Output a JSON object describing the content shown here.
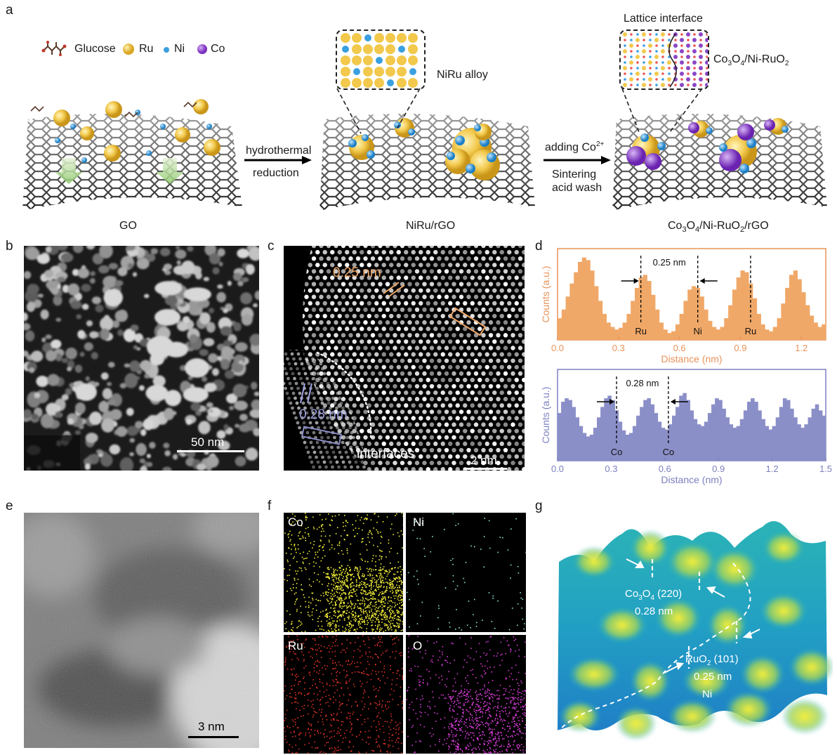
{
  "panels": {
    "a": "a",
    "b": "b",
    "c": "c",
    "d": "d",
    "e": "e",
    "f": "f",
    "g": "g"
  },
  "panel_a": {
    "legend": {
      "glucose": "Glucose",
      "ru": "Ru",
      "ni": "Ni",
      "co": "Co"
    },
    "steps": {
      "go": "GO",
      "nirurgo": "NiRu/rGO",
      "final_pre": "Co",
      "final_sub1": "3",
      "final_mid": "O",
      "final_sub2": "4",
      "final_mid2": "/Ni-RuO",
      "final_sub3": "2",
      "final_post": "/rGO"
    },
    "arrow1": {
      "top": "hydrothermal",
      "bottom": "reduction"
    },
    "arrow2": {
      "top_pre": "adding Co",
      "top_sup": "2+",
      "bottom1": "Sintering",
      "bottom2": "acid wash"
    },
    "inset1_label": "NiRu alloy",
    "inset2_title": "Lattice interface",
    "inset2_label_pre": "Co",
    "inset2_sub1": "3",
    "inset2_mid": "O",
    "inset2_sub2": "4",
    "inset2_post": "/Ni-RuO",
    "inset2_sub3": "2"
  },
  "panel_b": {
    "scale": "50 nm"
  },
  "panel_c": {
    "spacing1": "0.25 nm",
    "spacing2": "0.28 nm",
    "interfaces": "interfaces",
    "scale": "2 nm"
  },
  "panel_e": {
    "scale": "3 nm"
  },
  "panel_f": {
    "maps": [
      "Co",
      "Ni",
      "Ru",
      "O"
    ]
  },
  "panel_g": {
    "label1_pre": "Co",
    "label1_sub1": "3",
    "label1_mid": "O",
    "label1_sub2": "4",
    "label1_post": " (220)",
    "label1_val": "0.28 nm",
    "label2_pre": "RuO",
    "label2_sub": "2",
    "label2_post": " (101)",
    "label2_val": "0.25 nm",
    "label2_el": "Ni"
  },
  "colors": {
    "orange": "#f0a868",
    "orange_dark": "#e8935a",
    "purple": "#8b8fc8",
    "purple_dark": "#7c80c0",
    "ru_gold": "#f2c94c",
    "ni_blue": "#3aa0e0",
    "co_purple": "#8a46c8"
  },
  "chart_data": [
    {
      "type": "bar",
      "panel": "d-top",
      "xlabel": "Distance (nm)",
      "ylabel": "Counts (a.u.)",
      "xlim": [
        0,
        1.32
      ],
      "xticks": [
        "0.0",
        "0.3",
        "0.6",
        "0.9",
        "1.2"
      ],
      "annotation": "0.25 nm",
      "peak_labels": [
        {
          "x": 0.41,
          "label": "Ru"
        },
        {
          "x": 0.69,
          "label": "Ni"
        },
        {
          "x": 0.95,
          "label": "Ru"
        }
      ],
      "x": [
        0.0,
        0.02,
        0.04,
        0.06,
        0.08,
        0.1,
        0.12,
        0.14,
        0.16,
        0.18,
        0.2,
        0.22,
        0.24,
        0.26,
        0.28,
        0.3,
        0.32,
        0.34,
        0.36,
        0.38,
        0.4,
        0.42,
        0.44,
        0.46,
        0.48,
        0.5,
        0.52,
        0.54,
        0.56,
        0.58,
        0.6,
        0.62,
        0.64,
        0.66,
        0.68,
        0.7,
        0.72,
        0.74,
        0.76,
        0.78,
        0.8,
        0.82,
        0.84,
        0.86,
        0.88,
        0.9,
        0.92,
        0.94,
        0.96,
        0.98,
        1.0,
        1.02,
        1.04,
        1.06,
        1.08,
        1.1,
        1.12,
        1.14,
        1.16,
        1.18,
        1.2,
        1.22,
        1.24,
        1.26,
        1.28,
        1.3
      ],
      "values": [
        0.25,
        0.35,
        0.5,
        0.65,
        0.78,
        0.9,
        0.95,
        0.92,
        0.8,
        0.62,
        0.45,
        0.3,
        0.2,
        0.15,
        0.12,
        0.14,
        0.2,
        0.3,
        0.45,
        0.6,
        0.72,
        0.75,
        0.68,
        0.52,
        0.35,
        0.2,
        0.12,
        0.08,
        0.1,
        0.18,
        0.3,
        0.45,
        0.58,
        0.62,
        0.6,
        0.5,
        0.35,
        0.22,
        0.15,
        0.12,
        0.15,
        0.25,
        0.4,
        0.58,
        0.72,
        0.8,
        0.78,
        0.65,
        0.48,
        0.3,
        0.18,
        0.12,
        0.1,
        0.15,
        0.25,
        0.42,
        0.6,
        0.75,
        0.8,
        0.7,
        0.55,
        0.4,
        0.28,
        0.2,
        0.15,
        0.18
      ]
    },
    {
      "type": "bar",
      "panel": "d-bottom",
      "xlabel": "Distance (nm)",
      "ylabel": "Counts (a.u.)",
      "xlim": [
        0,
        1.5
      ],
      "xticks": [
        "0.0",
        "0.3",
        "0.6",
        "0.9",
        "1.2",
        "1.5"
      ],
      "annotation": "0.28 nm",
      "peak_labels": [
        {
          "x": 0.33,
          "label": "Co"
        },
        {
          "x": 0.62,
          "label": "Co"
        }
      ],
      "x": [
        0.0,
        0.02,
        0.04,
        0.06,
        0.08,
        0.1,
        0.12,
        0.14,
        0.16,
        0.18,
        0.2,
        0.22,
        0.24,
        0.26,
        0.28,
        0.3,
        0.32,
        0.34,
        0.36,
        0.38,
        0.4,
        0.42,
        0.44,
        0.46,
        0.48,
        0.5,
        0.52,
        0.54,
        0.56,
        0.58,
        0.6,
        0.62,
        0.64,
        0.66,
        0.68,
        0.7,
        0.72,
        0.74,
        0.76,
        0.78,
        0.8,
        0.82,
        0.84,
        0.86,
        0.88,
        0.9,
        0.92,
        0.94,
        0.96,
        0.98,
        1.0,
        1.02,
        1.04,
        1.06,
        1.08,
        1.1,
        1.12,
        1.14,
        1.16,
        1.18,
        1.2,
        1.22,
        1.24,
        1.26,
        1.28,
        1.3,
        1.32,
        1.34,
        1.36,
        1.38,
        1.4,
        1.42,
        1.44,
        1.46,
        1.48
      ],
      "values": [
        0.55,
        0.68,
        0.72,
        0.7,
        0.62,
        0.5,
        0.4,
        0.32,
        0.28,
        0.3,
        0.38,
        0.5,
        0.62,
        0.72,
        0.75,
        0.7,
        0.58,
        0.45,
        0.35,
        0.3,
        0.32,
        0.4,
        0.52,
        0.62,
        0.7,
        0.72,
        0.65,
        0.55,
        0.45,
        0.38,
        0.36,
        0.42,
        0.52,
        0.62,
        0.75,
        0.78,
        0.7,
        0.58,
        0.48,
        0.42,
        0.4,
        0.45,
        0.55,
        0.65,
        0.72,
        0.7,
        0.6,
        0.5,
        0.42,
        0.38,
        0.4,
        0.48,
        0.58,
        0.68,
        0.72,
        0.68,
        0.58,
        0.48,
        0.4,
        0.36,
        0.4,
        0.5,
        0.62,
        0.72,
        0.7,
        0.6,
        0.5,
        0.42,
        0.38,
        0.42,
        0.5,
        0.6,
        0.65,
        0.58,
        0.52
      ]
    }
  ]
}
